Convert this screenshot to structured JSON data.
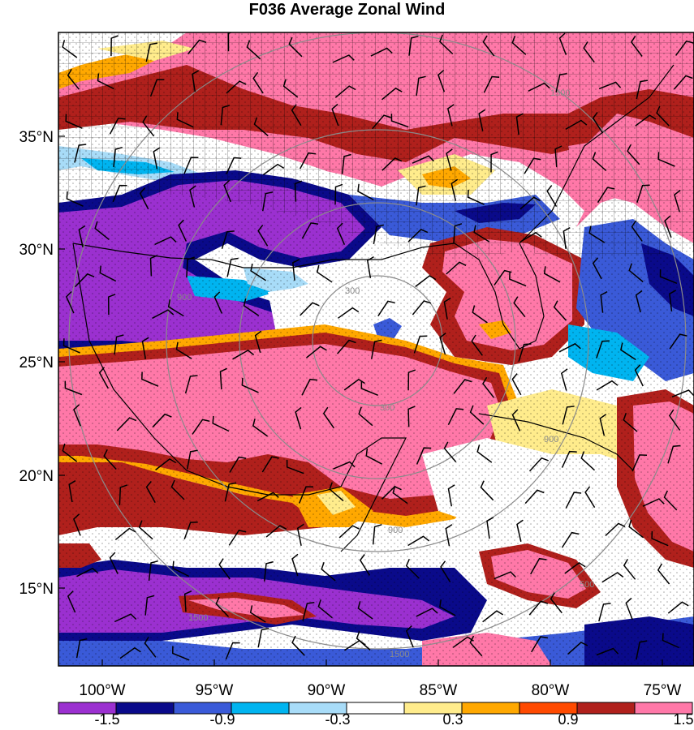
{
  "map": {
    "title": "F036 Average Zonal Wind",
    "lat_labels": [
      "35°N",
      "30°N",
      "25°N",
      "20°N",
      "15°N"
    ],
    "lon_labels": [
      "100°W",
      "95°W",
      "90°W",
      "85°W",
      "80°W",
      "75°W"
    ],
    "range_ring_labels": [
      "300",
      "300",
      "900",
      "900",
      "900",
      "1500",
      "1500",
      "500",
      "1500"
    ],
    "colorbar": {
      "colors": [
        "#9b30d0",
        "#0a0a8a",
        "#3a5ad8",
        "#00b4f0",
        "#a8dcf8",
        "#ffffff",
        "#ffec8c",
        "#ffa800",
        "#ff4a00",
        "#b0201c",
        "#ff78a8"
      ],
      "labels": [
        "-1.5",
        "-0.9",
        "-0.3",
        "0.3",
        "0.9",
        "1.5"
      ]
    }
  }
}
